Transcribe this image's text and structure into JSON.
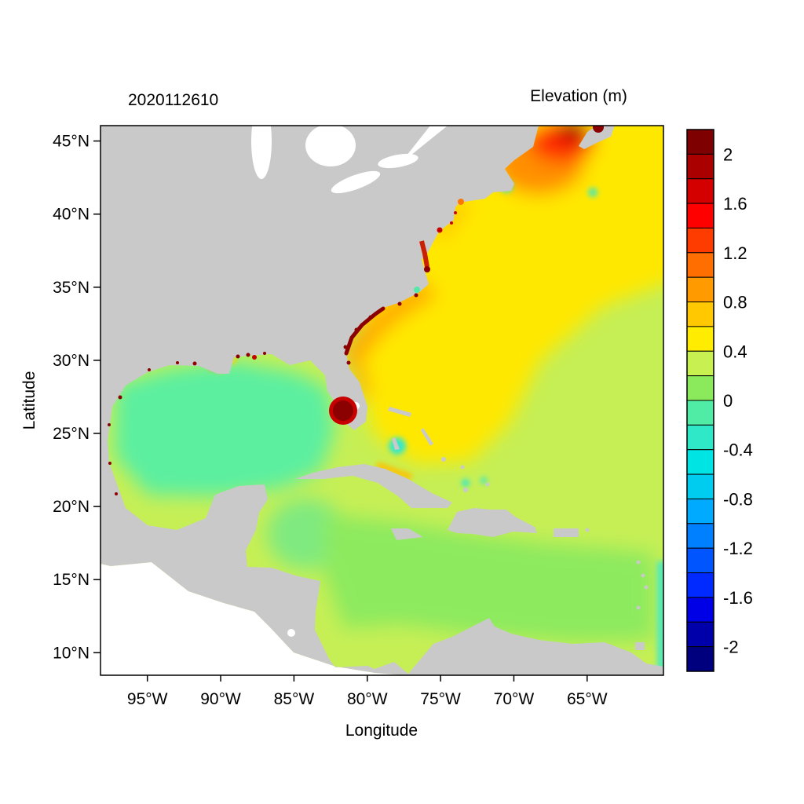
{
  "figure": {
    "left_title": "2020112610",
    "right_title": "Elevation (m)",
    "xlabel": "Longitude",
    "ylabel": "Latitude",
    "x_ticks": [
      "95°W",
      "90°W",
      "85°W",
      "80°W",
      "75°W",
      "70°W",
      "65°W"
    ],
    "y_ticks": [
      "45°N",
      "40°N",
      "35°N",
      "30°N",
      "25°N",
      "20°N",
      "15°N",
      "10°N"
    ]
  },
  "chart_data": {
    "type": "heatmap",
    "title": "Elevation (m)",
    "timestamp": "2020112610",
    "xlabel": "Longitude",
    "ylabel": "Latitude",
    "x_tick_labels": [
      "95°W",
      "90°W",
      "85°W",
      "80°W",
      "75°W",
      "70°W",
      "65°W"
    ],
    "y_tick_labels": [
      "45°N",
      "40°N",
      "35°N",
      "30°N",
      "25°N",
      "20°N",
      "15°N",
      "10°N"
    ],
    "x_ticks_deg_w": [
      95,
      90,
      85,
      80,
      75,
      70,
      65
    ],
    "y_ticks_deg_n": [
      45,
      40,
      35,
      30,
      25,
      20,
      15,
      10
    ],
    "lon_range_deg_w": [
      98.2,
      59.8
    ],
    "lat_range_deg_n": [
      8.5,
      46.0
    ],
    "colorbar": {
      "title": "Elevation (m)",
      "units": "m",
      "value_range": [
        -2.2,
        2.2
      ],
      "block_step": 0.2,
      "tick_values": [
        2,
        1.6,
        1.2,
        0.8,
        0.4,
        0,
        -0.4,
        -0.8,
        -1.2,
        -1.6,
        -2
      ],
      "tick_labels": [
        "2",
        "1.6",
        "1.2",
        "0.8",
        "0.4",
        "0",
        "-0.4",
        "-0.8",
        "-1.2",
        "-1.6",
        "-2"
      ],
      "colors_top_to_bottom": [
        "#7f0000",
        "#aa0000",
        "#d40000",
        "#ff0000",
        "#ff3c00",
        "#ff6e00",
        "#ff9b00",
        "#ffc800",
        "#ffec00",
        "#c8f050",
        "#8be95c",
        "#50eba5",
        "#2fe8c8",
        "#00e4e4",
        "#00ccf0",
        "#00aaff",
        "#0080ff",
        "#0055ff",
        "#002aff",
        "#0000e6",
        "#0000aa",
        "#00007f"
      ]
    },
    "regions_observed": [
      {
        "region": "Gulf of Mexico",
        "approx_elevation_m": 0.0
      },
      {
        "region": "Caribbean Sea",
        "approx_elevation_m": 0.15
      },
      {
        "region": "Western North Atlantic off US east coast",
        "approx_elevation_m": 0.5
      },
      {
        "region": "Central Atlantic southeast of 65W",
        "approx_elevation_m": 0.3
      },
      {
        "region": "Gulf Stream band Florida to Cape Hatteras",
        "approx_elevation_m": 0.9
      },
      {
        "region": "Gulf of Maine",
        "approx_elevation_m": 1.3
      },
      {
        "region": "Bay of Fundy maximum",
        "approx_elevation_m": 2.0
      },
      {
        "region": "Southwest Florida coastal anomaly",
        "approx_elevation_m": 2.0
      },
      {
        "region": "Georgia and Carolinas coastal strip",
        "approx_elevation_m": 2.0
      },
      {
        "region": "Chesapeake Bay",
        "approx_elevation_m": 1.6
      },
      {
        "region": "Bahamas banks patches",
        "approx_elevation_m": -0.3
      },
      {
        "region": "Open boundary strip near 60W south",
        "approx_elevation_m": -0.3
      }
    ],
    "map_colors": {
      "land": "#c9c9c9",
      "no_data": "#ffffff",
      "base_atlantic": "#c6ef55",
      "atlantic_yellow": "#ffe800",
      "gulf_stream_orange": "#ffa500",
      "midatl_orange": "#ffb000",
      "maine_orange": "#ff9000",
      "maine_red": "#ff2a00",
      "maine_dark_red": "#a50000",
      "gulf_mint": "#5cefa0",
      "nw_caribbean_green": "#7fea80",
      "caribbean_green": "#8dea5f",
      "turquoise": "#39e8c8",
      "shelf_teal": "#55e8a8",
      "boundary_teal": "#4fe9be",
      "delta_yellow": "#ffd000",
      "delta_orange": "#ff9800",
      "surge_dark_red": "#8b0000",
      "surge_red": "#c80000",
      "chesapeake_red": "#c82000",
      "ny_orange": "#ff7700",
      "old_bahama_orange": "#ffc000",
      "plot_border": "#000000",
      "background": "#ffffff"
    }
  }
}
